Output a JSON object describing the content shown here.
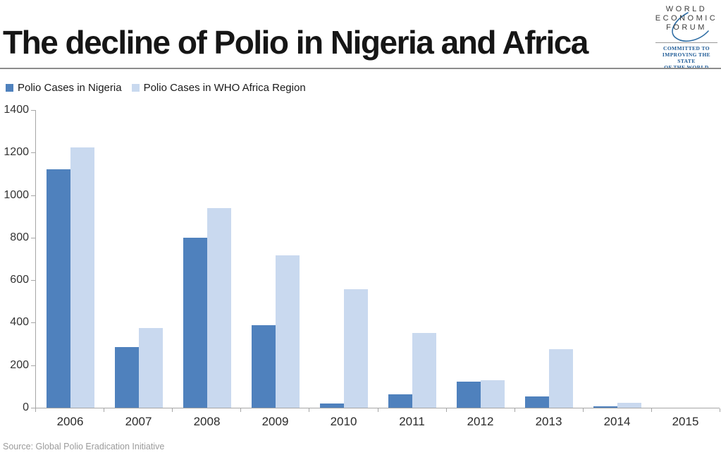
{
  "header": {
    "title": "The decline of Polio in Nigeria and Africa"
  },
  "logo": {
    "lines": [
      "WORLD",
      "ECONOMIC",
      "FORUM"
    ],
    "tagline": [
      "COMMITTED TO",
      "IMPROVING THE STATE",
      "OF THE WORLD"
    ],
    "text_color": "#3d3d3d",
    "swoosh_color": "#2e6da4",
    "tagline_color": "#1d5a96"
  },
  "legend": [
    {
      "label": "Polio Cases in Nigeria",
      "color": "#4F81BD"
    },
    {
      "label": "Polio Cases in WHO Africa Region",
      "color": "#C9D9EF"
    }
  ],
  "chart_data": {
    "type": "bar",
    "title": "The decline of Polio in Nigeria and Africa",
    "categories": [
      "2006",
      "2007",
      "2008",
      "2009",
      "2010",
      "2011",
      "2012",
      "2013",
      "2014",
      "2015"
    ],
    "series": [
      {
        "name": "Polio Cases in Nigeria",
        "color": "#4F81BD",
        "values": [
          1122,
          285,
          798,
          388,
          21,
          62,
          122,
          53,
          6,
          0
        ]
      },
      {
        "name": "Polio Cases in WHO Africa Region",
        "color": "#C9D9EF",
        "values": [
          1223,
          375,
          940,
          718,
          556,
          350,
          128,
          274,
          22,
          0
        ]
      }
    ],
    "xlabel": "",
    "ylabel": "",
    "ylim": [
      0,
      1400
    ],
    "yticks": [
      0,
      200,
      400,
      600,
      800,
      1000,
      1200,
      1400
    ],
    "grid": false,
    "legend_position": "top-left",
    "axis_color": "#a6a6a6"
  },
  "footer": {
    "source": "Source: Global Polio Eradication Initiative"
  }
}
